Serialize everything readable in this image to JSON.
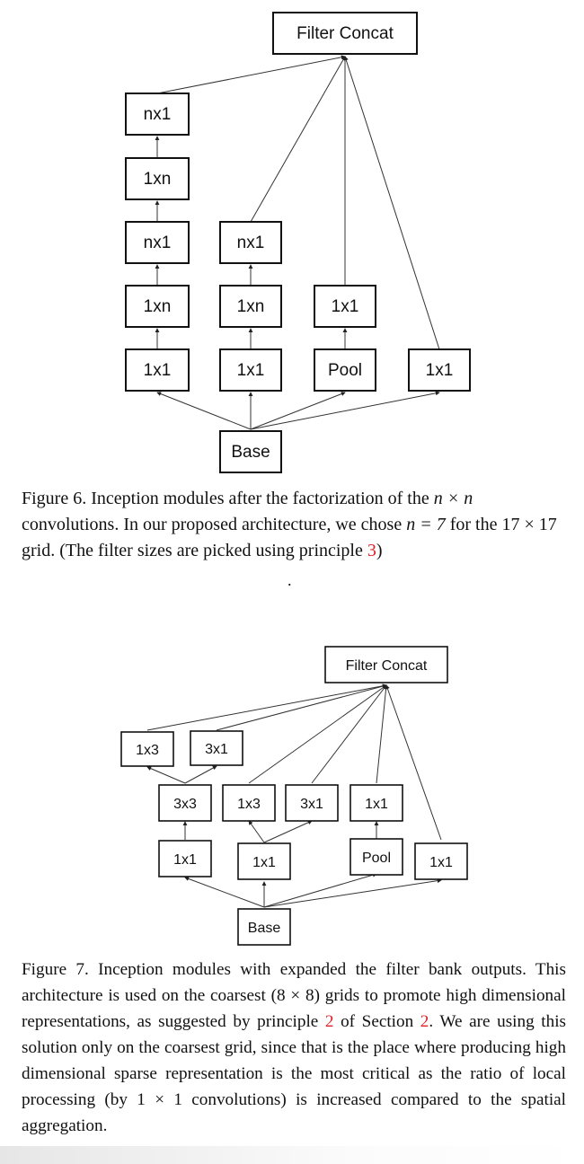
{
  "figure6": {
    "boxes": {
      "filter_concat": "Filter Concat",
      "b1_nx1_top": "nx1",
      "b1_1xn_upper": "1xn",
      "b1_nx1_mid": "nx1",
      "b1_1xn_lower": "1xn",
      "b1_1x1": "1x1",
      "b2_nx1": "nx1",
      "b2_1xn": "1xn",
      "b2_1x1": "1x1",
      "b3_1x1": "1x1",
      "b3_pool": "Pool",
      "b4_1x1": "1x1",
      "base": "Base"
    },
    "caption": {
      "p1": "Figure 6. Inception modules after the factorization of the ",
      "m1": "n × n",
      "p2": " convolutions. In our proposed architecture, we chose ",
      "m2": "n = 7",
      "p3": " for the ",
      "m3": "17 × 17",
      "p4": " grid. (The filter sizes are picked using principle ",
      "ref": "3",
      "p5": ")"
    },
    "trailing_dot": "."
  },
  "figure7": {
    "boxes": {
      "filter_concat": "Filter Concat",
      "b1_1x3": "1x3",
      "b1_3x1": "3x1",
      "b1_3x3": "3x3",
      "b1_1x1": "1x1",
      "b2_1x3": "1x3",
      "b2_3x1": "3x1",
      "b2_1x1": "1x1",
      "b3_1x1": "1x1",
      "b3_pool": "Pool",
      "b4_1x1": "1x1",
      "base": "Base"
    },
    "caption": {
      "p1": "Figure 7. Inception modules with expanded the filter bank outputs. This architecture is used on the coarsest (",
      "m1": "8 × 8",
      "p2": ") grids to promote high dimensional representations, as suggested by principle ",
      "ref1": "2",
      "p3": " of Section ",
      "ref2": "2",
      "p4": ". We are using this solution only on the coarsest grid, since that is the place where producing high dimensional sparse representation is the most critical as the ratio of local processing (by ",
      "m2": "1 × 1",
      "p5": " convolutions) is increased compared to the spatial aggregation."
    }
  }
}
